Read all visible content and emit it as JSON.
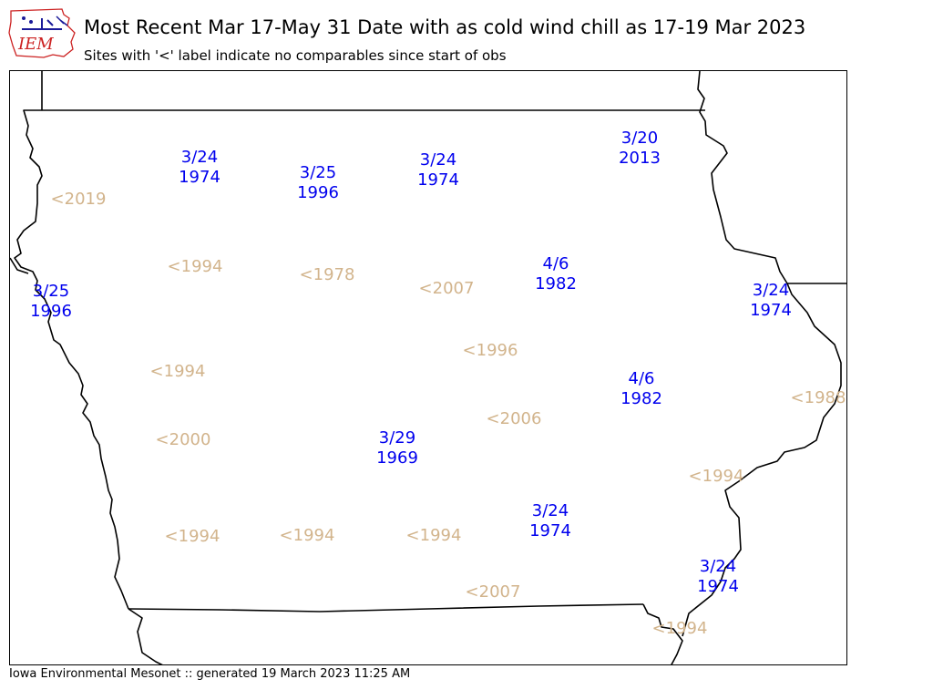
{
  "header": {
    "logo_text": "IEM",
    "title": "Most Recent Mar 17-May 31 Date with as cold wind chill as 17-19 Mar 2023",
    "subtitle": "Sites with '<' label indicate no comparables since start of obs"
  },
  "footer": {
    "text": "Iowa Environmental Mesonet :: generated 19 March 2023 11:25 AM"
  },
  "colors": {
    "found": "#0000ee",
    "no_comparable": "#d2b48c",
    "boundary": "#000000"
  },
  "stations": [
    {
      "label": "3/24\n1974",
      "status": "found"
    },
    {
      "label": "3/25\n1996",
      "status": "found"
    },
    {
      "label": "3/24\n1974",
      "status": "found"
    },
    {
      "label": "3/20\n2013",
      "status": "found"
    },
    {
      "label": "<2019",
      "status": "no_comparable"
    },
    {
      "label": "<1994",
      "status": "no_comparable"
    },
    {
      "label": "<1978",
      "status": "no_comparable"
    },
    {
      "label": "<2007",
      "status": "no_comparable"
    },
    {
      "label": "4/6\n1982",
      "status": "found"
    },
    {
      "label": "3/25\n1996",
      "status": "found"
    },
    {
      "label": "3/24\n1974",
      "status": "found"
    },
    {
      "label": "<1996",
      "status": "no_comparable"
    },
    {
      "label": "<1994",
      "status": "no_comparable"
    },
    {
      "label": "4/6\n1982",
      "status": "found"
    },
    {
      "label": "<1988",
      "status": "no_comparable"
    },
    {
      "label": "<2006",
      "status": "no_comparable"
    },
    {
      "label": "<2000",
      "status": "no_comparable"
    },
    {
      "label": "3/29\n1969",
      "status": "found"
    },
    {
      "label": "<1994",
      "status": "no_comparable"
    },
    {
      "label": "3/24\n1974",
      "status": "found"
    },
    {
      "label": "<1994",
      "status": "no_comparable"
    },
    {
      "label": "<1994",
      "status": "no_comparable"
    },
    {
      "label": "<1994",
      "status": "no_comparable"
    },
    {
      "label": "3/24\n1974",
      "status": "found"
    },
    {
      "label": "<2007",
      "status": "no_comparable"
    },
    {
      "label": "<1994",
      "status": "no_comparable"
    }
  ]
}
